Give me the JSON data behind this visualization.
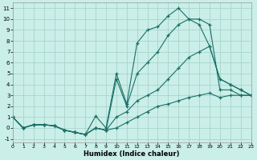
{
  "xlabel": "Humidex (Indice chaleur)",
  "bg_color": "#caeee8",
  "grid_color": "#a8d4cc",
  "line_color": "#1a7068",
  "xlim": [
    0,
    23
  ],
  "ylim": [
    -1.3,
    11.5
  ],
  "yticks": [
    -1,
    0,
    1,
    2,
    3,
    4,
    5,
    6,
    7,
    8,
    9,
    10,
    11
  ],
  "xticks": [
    0,
    1,
    2,
    3,
    4,
    5,
    6,
    7,
    8,
    9,
    10,
    11,
    12,
    13,
    14,
    15,
    16,
    17,
    18,
    19,
    20,
    21,
    22,
    23
  ],
  "series": [
    {
      "x": [
        0,
        1,
        2,
        3,
        4,
        5,
        6,
        7,
        8,
        9,
        10,
        11,
        12,
        13,
        14,
        15,
        16,
        17,
        18,
        19,
        20,
        21,
        22,
        23
      ],
      "y": [
        1,
        0,
        0.3,
        0.3,
        0.2,
        -0.2,
        -0.4,
        -0.6,
        1.1,
        0.0,
        5.0,
        2.2,
        7.8,
        9.0,
        9.3,
        10.3,
        11.0,
        10.0,
        10.0,
        9.5,
        3.5,
        3.5,
        3.0,
        3.0
      ]
    },
    {
      "x": [
        0,
        1,
        2,
        3,
        4,
        5,
        6,
        7,
        8,
        9,
        10,
        11,
        12,
        13,
        14,
        15,
        16,
        17,
        18,
        19,
        20,
        21,
        22,
        23
      ],
      "y": [
        1,
        0,
        0.3,
        0.3,
        0.2,
        -0.2,
        -0.4,
        -0.6,
        0.0,
        -0.2,
        4.5,
        2.0,
        5.0,
        6.0,
        7.0,
        8.5,
        9.5,
        10.0,
        9.5,
        7.5,
        4.5,
        4.0,
        3.5,
        3.0
      ]
    },
    {
      "x": [
        0,
        1,
        2,
        3,
        4,
        5,
        6,
        7,
        8,
        9,
        10,
        11,
        12,
        13,
        14,
        15,
        16,
        17,
        18,
        19,
        20,
        21,
        22,
        23
      ],
      "y": [
        1,
        0,
        0.3,
        0.3,
        0.2,
        -0.2,
        -0.4,
        -0.6,
        0.0,
        -0.2,
        1.0,
        1.5,
        2.5,
        3.0,
        3.5,
        4.5,
        5.5,
        6.5,
        7.0,
        7.5,
        4.5,
        4.0,
        3.5,
        3.0
      ]
    },
    {
      "x": [
        0,
        1,
        2,
        3,
        4,
        5,
        6,
        7,
        8,
        9,
        10,
        11,
        12,
        13,
        14,
        15,
        16,
        17,
        18,
        19,
        20,
        21,
        22,
        23
      ],
      "y": [
        1,
        0,
        0.3,
        0.3,
        0.2,
        -0.2,
        -0.4,
        -0.6,
        0.0,
        -0.2,
        0.0,
        0.5,
        1.0,
        1.5,
        2.0,
        2.2,
        2.5,
        2.8,
        3.0,
        3.2,
        2.8,
        3.0,
        3.0,
        3.0
      ]
    }
  ]
}
